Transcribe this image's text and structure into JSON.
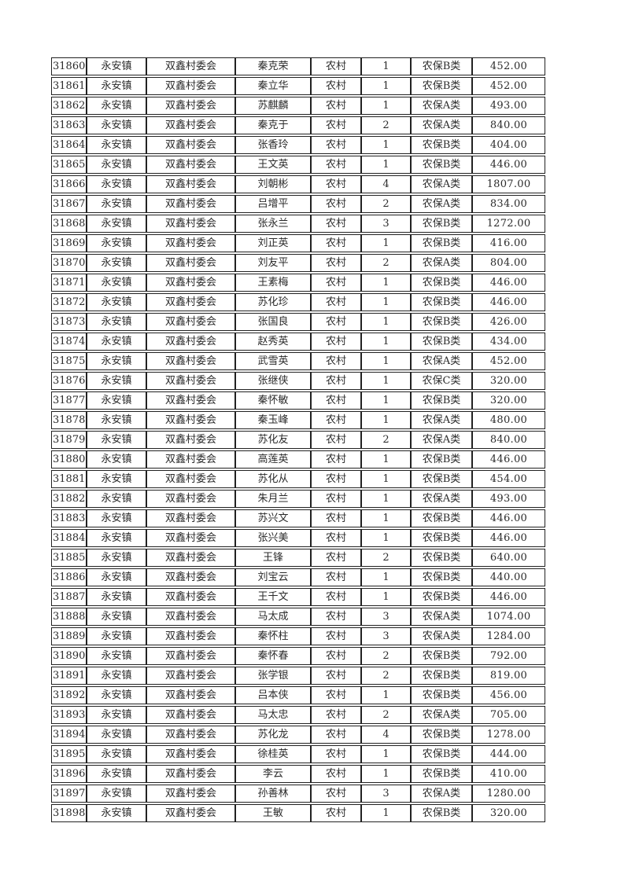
{
  "colors": {
    "page_background": "#ffffff",
    "grid_line": "#222222",
    "text": "#2b2b2b"
  },
  "table": {
    "rows": [
      [
        "31860",
        "永安镇",
        "双鑫村委会",
        "秦克荣",
        "农村",
        "1",
        "农保B类",
        "452.00"
      ],
      [
        "31861",
        "永安镇",
        "双鑫村委会",
        "秦立华",
        "农村",
        "1",
        "农保B类",
        "452.00"
      ],
      [
        "31862",
        "永安镇",
        "双鑫村委会",
        "苏麒麟",
        "农村",
        "1",
        "农保A类",
        "493.00"
      ],
      [
        "31863",
        "永安镇",
        "双鑫村委会",
        "秦克于",
        "农村",
        "2",
        "农保A类",
        "840.00"
      ],
      [
        "31864",
        "永安镇",
        "双鑫村委会",
        "张香玲",
        "农村",
        "1",
        "农保B类",
        "404.00"
      ],
      [
        "31865",
        "永安镇",
        "双鑫村委会",
        "王文英",
        "农村",
        "1",
        "农保B类",
        "446.00"
      ],
      [
        "31866",
        "永安镇",
        "双鑫村委会",
        "刘朝彬",
        "农村",
        "4",
        "农保A类",
        "1807.00"
      ],
      [
        "31867",
        "永安镇",
        "双鑫村委会",
        "吕增平",
        "农村",
        "2",
        "农保A类",
        "834.00"
      ],
      [
        "31868",
        "永安镇",
        "双鑫村委会",
        "张永兰",
        "农村",
        "3",
        "农保B类",
        "1272.00"
      ],
      [
        "31869",
        "永安镇",
        "双鑫村委会",
        "刘正英",
        "农村",
        "1",
        "农保B类",
        "416.00"
      ],
      [
        "31870",
        "永安镇",
        "双鑫村委会",
        "刘友平",
        "农村",
        "2",
        "农保A类",
        "804.00"
      ],
      [
        "31871",
        "永安镇",
        "双鑫村委会",
        "王素梅",
        "农村",
        "1",
        "农保B类",
        "446.00"
      ],
      [
        "31872",
        "永安镇",
        "双鑫村委会",
        "苏化珍",
        "农村",
        "1",
        "农保B类",
        "446.00"
      ],
      [
        "31873",
        "永安镇",
        "双鑫村委会",
        "张国良",
        "农村",
        "1",
        "农保B类",
        "426.00"
      ],
      [
        "31874",
        "永安镇",
        "双鑫村委会",
        "赵秀英",
        "农村",
        "1",
        "农保B类",
        "434.00"
      ],
      [
        "31875",
        "永安镇",
        "双鑫村委会",
        "武雪英",
        "农村",
        "1",
        "农保A类",
        "452.00"
      ],
      [
        "31876",
        "永安镇",
        "双鑫村委会",
        "张继侠",
        "农村",
        "1",
        "农保C类",
        "320.00"
      ],
      [
        "31877",
        "永安镇",
        "双鑫村委会",
        "秦怀敏",
        "农村",
        "1",
        "农保B类",
        "320.00"
      ],
      [
        "31878",
        "永安镇",
        "双鑫村委会",
        "秦玉峰",
        "农村",
        "1",
        "农保A类",
        "480.00"
      ],
      [
        "31879",
        "永安镇",
        "双鑫村委会",
        "苏化友",
        "农村",
        "2",
        "农保A类",
        "840.00"
      ],
      [
        "31880",
        "永安镇",
        "双鑫村委会",
        "高莲英",
        "农村",
        "1",
        "农保B类",
        "446.00"
      ],
      [
        "31881",
        "永安镇",
        "双鑫村委会",
        "苏化从",
        "农村",
        "1",
        "农保B类",
        "454.00"
      ],
      [
        "31882",
        "永安镇",
        "双鑫村委会",
        "朱月兰",
        "农村",
        "1",
        "农保A类",
        "493.00"
      ],
      [
        "31883",
        "永安镇",
        "双鑫村委会",
        "苏兴文",
        "农村",
        "1",
        "农保B类",
        "446.00"
      ],
      [
        "31884",
        "永安镇",
        "双鑫村委会",
        "张兴美",
        "农村",
        "1",
        "农保B类",
        "446.00"
      ],
      [
        "31885",
        "永安镇",
        "双鑫村委会",
        "王锋",
        "农村",
        "2",
        "农保B类",
        "640.00"
      ],
      [
        "31886",
        "永安镇",
        "双鑫村委会",
        "刘宝云",
        "农村",
        "1",
        "农保B类",
        "440.00"
      ],
      [
        "31887",
        "永安镇",
        "双鑫村委会",
        "王千文",
        "农村",
        "1",
        "农保B类",
        "446.00"
      ],
      [
        "31888",
        "永安镇",
        "双鑫村委会",
        "马太成",
        "农村",
        "3",
        "农保A类",
        "1074.00"
      ],
      [
        "31889",
        "永安镇",
        "双鑫村委会",
        "秦怀柱",
        "农村",
        "3",
        "农保A类",
        "1284.00"
      ],
      [
        "31890",
        "永安镇",
        "双鑫村委会",
        "秦怀春",
        "农村",
        "2",
        "农保B类",
        "792.00"
      ],
      [
        "31891",
        "永安镇",
        "双鑫村委会",
        "张学银",
        "农村",
        "2",
        "农保B类",
        "819.00"
      ],
      [
        "31892",
        "永安镇",
        "双鑫村委会",
        "吕本侠",
        "农村",
        "1",
        "农保B类",
        "456.00"
      ],
      [
        "31893",
        "永安镇",
        "双鑫村委会",
        "马太忠",
        "农村",
        "2",
        "农保A类",
        "705.00"
      ],
      [
        "31894",
        "永安镇",
        "双鑫村委会",
        "苏化龙",
        "农村",
        "4",
        "农保B类",
        "1278.00"
      ],
      [
        "31895",
        "永安镇",
        "双鑫村委会",
        "徐桂英",
        "农村",
        "1",
        "农保B类",
        "444.00"
      ],
      [
        "31896",
        "永安镇",
        "双鑫村委会",
        "李云",
        "农村",
        "1",
        "农保B类",
        "410.00"
      ],
      [
        "31897",
        "永安镇",
        "双鑫村委会",
        "孙善林",
        "农村",
        "3",
        "农保A类",
        "1280.00"
      ],
      [
        "31898",
        "永安镇",
        "双鑫村委会",
        "王敏",
        "农村",
        "1",
        "农保B类",
        "320.00"
      ]
    ]
  }
}
